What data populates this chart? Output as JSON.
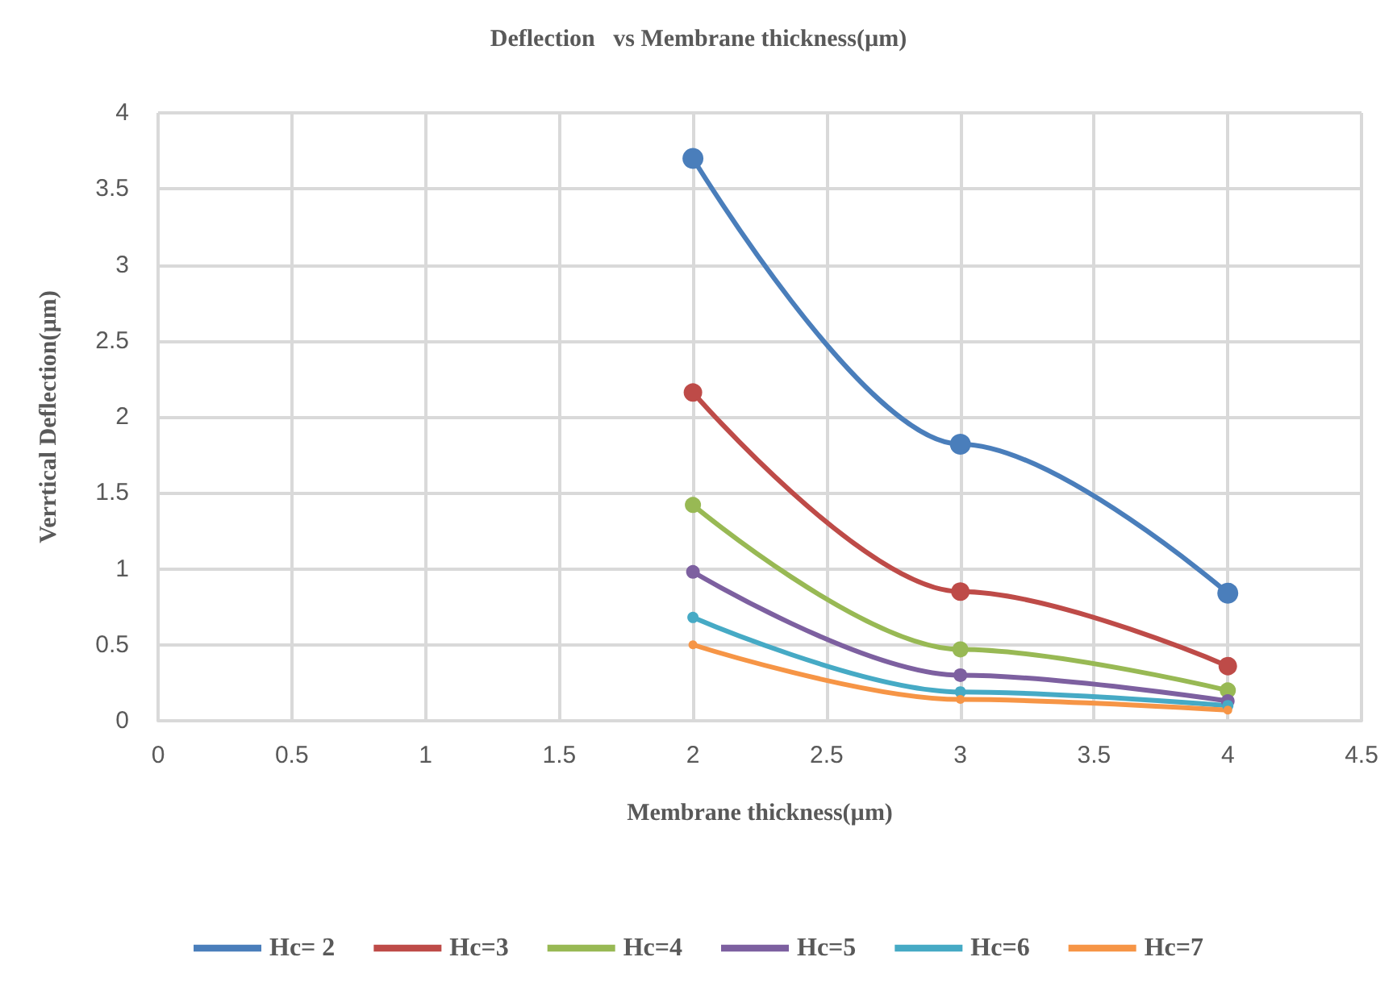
{
  "chart_data": {
    "type": "line",
    "title": "Deflection   vs Membrane thickness(µm)",
    "xlabel": "Membrane thickness(µm)",
    "ylabel": "Verrtical Deflection(µm)",
    "x": [
      2,
      3,
      4
    ],
    "series": [
      {
        "name": "Hc= 2",
        "color": "#4a7ebb",
        "values": [
          3.7,
          1.82,
          0.84
        ]
      },
      {
        "name": "Hc=3",
        "color": "#be4b48",
        "values": [
          2.16,
          0.85,
          0.36
        ]
      },
      {
        "name": "Hc=4",
        "color": "#98b954",
        "values": [
          1.42,
          0.47,
          0.2
        ]
      },
      {
        "name": "Hc=5",
        "color": "#7d60a0",
        "values": [
          0.98,
          0.3,
          0.13
        ]
      },
      {
        "name": "Hc=6",
        "color": "#46aac5",
        "values": [
          0.68,
          0.19,
          0.1
        ]
      },
      {
        "name": "Hc=7",
        "color": "#f69546",
        "values": [
          0.5,
          0.14,
          0.07
        ]
      }
    ],
    "xlim": [
      0,
      4.5
    ],
    "xticks": [
      0,
      0.5,
      1,
      1.5,
      2,
      2.5,
      3,
      3.5,
      4,
      4.5
    ],
    "ylim": [
      0,
      4
    ],
    "yticks": [
      0,
      0.5,
      1,
      1.5,
      2,
      2.5,
      3,
      3.5,
      4
    ],
    "grid": true,
    "legend": "bottom",
    "marker": "circle",
    "line_style": "solid"
  }
}
